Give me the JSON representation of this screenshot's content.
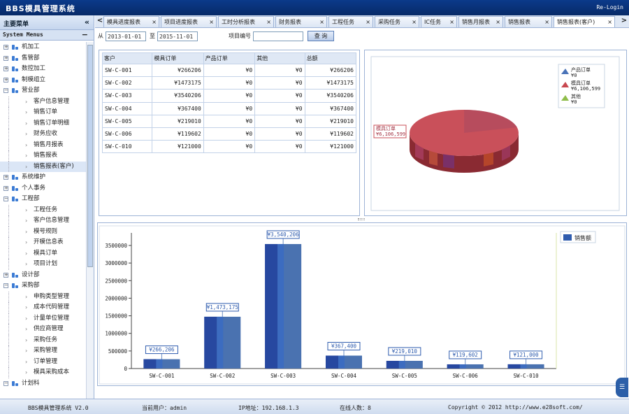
{
  "app": {
    "title": "BBS模具管理系统",
    "relogin": "Re-Login"
  },
  "sidebar": {
    "title": "主要菜单",
    "collapse_icon": "«",
    "subtitle": "System Menus",
    "subtitle_toggle": "−",
    "tree": [
      {
        "label": "机加工",
        "level": 0,
        "toggle": "+"
      },
      {
        "label": "售管部",
        "level": 0,
        "toggle": "+"
      },
      {
        "label": "数控加工",
        "level": 0,
        "toggle": "+"
      },
      {
        "label": "制模组立",
        "level": 0,
        "toggle": "+"
      },
      {
        "label": "营业部",
        "level": 0,
        "toggle": "−"
      },
      {
        "label": "客户信息管理",
        "level": 1
      },
      {
        "label": "销售订单",
        "level": 1
      },
      {
        "label": "销售订单明细",
        "level": 1
      },
      {
        "label": "财务应收",
        "level": 1
      },
      {
        "label": "销售月报表",
        "level": 1
      },
      {
        "label": "销售报表",
        "level": 1
      },
      {
        "label": "销售报表(客户)",
        "level": 1,
        "selected": true
      },
      {
        "label": "系统维护",
        "level": 0,
        "toggle": "+"
      },
      {
        "label": "个人事务",
        "level": 0,
        "toggle": "+"
      },
      {
        "label": "工程部",
        "level": 0,
        "toggle": "−"
      },
      {
        "label": "工程任务",
        "level": 1
      },
      {
        "label": "客户信息管理",
        "level": 1
      },
      {
        "label": "模号规则",
        "level": 1
      },
      {
        "label": "开模信息表",
        "level": 1
      },
      {
        "label": "模具订单",
        "level": 1
      },
      {
        "label": "项目计划",
        "level": 1
      },
      {
        "label": "设计部",
        "level": 0,
        "toggle": "+"
      },
      {
        "label": "采购部",
        "level": 0,
        "toggle": "−"
      },
      {
        "label": "申购类型管理",
        "level": 1
      },
      {
        "label": "成本代码管理",
        "level": 1
      },
      {
        "label": "计量单位管理",
        "level": 1
      },
      {
        "label": "供应商管理",
        "level": 1
      },
      {
        "label": "采购任务",
        "level": 1
      },
      {
        "label": "采购管理",
        "level": 1
      },
      {
        "label": "订单管理",
        "level": 1
      },
      {
        "label": "模具采购成本",
        "level": 1
      },
      {
        "label": "计划科",
        "level": 0,
        "toggle": "−"
      }
    ]
  },
  "tabs": [
    {
      "label": "模具进度报表",
      "close": "×"
    },
    {
      "label": "项目进度报表",
      "close": "×"
    },
    {
      "label": "工时分析报表",
      "close": "×"
    },
    {
      "label": "财务报表",
      "close": "×"
    },
    {
      "label": "工程任务",
      "close": "×"
    },
    {
      "label": "采购任务",
      "close": "×"
    },
    {
      "label": "IC任务",
      "close": "×"
    },
    {
      "label": "销售月报表",
      "close": "×"
    },
    {
      "label": "销售报表",
      "close": "×"
    },
    {
      "label": "销售报表(客户)",
      "close": "×",
      "active": true
    }
  ],
  "tab_nav": {
    "prev": "<",
    "next": ">"
  },
  "filter": {
    "from_label": "从",
    "from_value": "2013-01-01",
    "to_label": "至",
    "to_value": "2015-11-01",
    "project_label": "项目编号",
    "project_value": "",
    "query_button": "查 询"
  },
  "table": {
    "columns": [
      "客户",
      "模具订单",
      "产品订单",
      "其他",
      "总额"
    ],
    "rows": [
      [
        "SW-C-001",
        "¥266206",
        "¥0",
        "¥0",
        "¥266206"
      ],
      [
        "SW-C-002",
        "¥1473175",
        "¥0",
        "¥0",
        "¥1473175"
      ],
      [
        "SW-C-003",
        "¥3540206",
        "¥0",
        "¥0",
        "¥3540206"
      ],
      [
        "SW-C-004",
        "¥367400",
        "¥0",
        "¥0",
        "¥367400"
      ],
      [
        "SW-C-005",
        "¥219010",
        "¥0",
        "¥0",
        "¥219010"
      ],
      [
        "SW-C-006",
        "¥119602",
        "¥0",
        "¥0",
        "¥119602"
      ],
      [
        "SW-C-010",
        "¥121000",
        "¥0",
        "¥0",
        "¥121000"
      ]
    ]
  },
  "pie_chart": {
    "legend": [
      {
        "name": "产品订单",
        "value": "¥0",
        "color": "#4a73b8"
      },
      {
        "name": "模具订单",
        "value": "¥6,106,599",
        "color": "#c8474f"
      },
      {
        "name": "其他",
        "value": "¥0",
        "color": "#8fbd4a"
      }
    ],
    "callout_label": "模具订单",
    "callout_value": "¥6,106,599"
  },
  "chart_data": {
    "type": "bar",
    "categories": [
      "SW-C-001",
      "SW-C-002",
      "SW-C-003",
      "SW-C-004",
      "SW-C-005",
      "SW-C-006",
      "SW-C-010"
    ],
    "series": [
      {
        "name": "销售额",
        "values": [
          266206,
          1473175,
          3540206,
          367400,
          219010,
          119602,
          121000
        ]
      }
    ],
    "data_labels": [
      "¥266,206",
      "¥1,473,175",
      "¥3,540,206",
      "¥367,400",
      "¥219,010",
      "¥119,602",
      "¥121,000"
    ],
    "yticks": [
      "0",
      "500000",
      "1000000",
      "1500000",
      "2000000",
      "2500000",
      "3000000",
      "3500000"
    ],
    "ylim": [
      0,
      3500000
    ],
    "color": "#2f5cae",
    "legend_position": "top-right",
    "grid": false
  },
  "footer": {
    "system": "BBS模具管理系统 V2.0",
    "user": "当前用户：admin",
    "ip": "IP地址：192.168.1.3",
    "online": "在线人数：8",
    "copyright": "Copyright © 2012 http://www.e28soft.com/"
  },
  "chat_widget": {
    "icon": "☰"
  }
}
